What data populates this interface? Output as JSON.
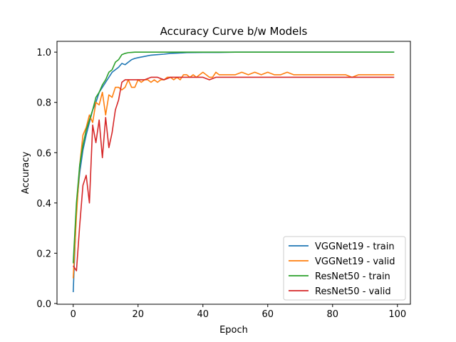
{
  "chart_data": {
    "type": "line",
    "title": "Accuracy Curve b/w Models",
    "xlabel": "Epoch",
    "ylabel": "Accuracy",
    "xlim": [
      -5,
      104
    ],
    "ylim": [
      -0.003,
      1.043
    ],
    "xticks": [
      0,
      20,
      40,
      60,
      80,
      100
    ],
    "yticks": [
      0.0,
      0.2,
      0.4,
      0.6,
      0.8,
      1.0
    ],
    "xtick_labels": [
      "0",
      "20",
      "40",
      "60",
      "80",
      "100"
    ],
    "ytick_labels": [
      "0.0",
      "0.2",
      "0.4",
      "0.6",
      "0.8",
      "1.0"
    ],
    "grid": false,
    "legend_position": "lower-right",
    "series": [
      {
        "name": "VGGNet19 - train",
        "color": "#1f77b4",
        "x": [
          0,
          1,
          2,
          3,
          4,
          5,
          6,
          7,
          8,
          9,
          10,
          11,
          12,
          13,
          14,
          15,
          16,
          17,
          18,
          19,
          20,
          22,
          24,
          26,
          28,
          30,
          32,
          35,
          40,
          45,
          50,
          60,
          70,
          80,
          90,
          99
        ],
        "values": [
          0.045,
          0.38,
          0.52,
          0.61,
          0.67,
          0.72,
          0.77,
          0.8,
          0.84,
          0.86,
          0.88,
          0.9,
          0.92,
          0.93,
          0.94,
          0.955,
          0.95,
          0.96,
          0.97,
          0.975,
          0.978,
          0.983,
          0.988,
          0.99,
          0.992,
          0.995,
          0.996,
          0.998,
          0.999,
          0.999,
          1.0,
          1.0,
          1.0,
          1.0,
          1.0,
          1.0
        ]
      },
      {
        "name": "VGGNet19 - valid",
        "color": "#ff7f0e",
        "x": [
          0,
          1,
          2,
          3,
          4,
          5,
          6,
          7,
          8,
          9,
          10,
          11,
          12,
          13,
          14,
          15,
          16,
          17,
          18,
          19,
          20,
          21,
          22,
          23,
          24,
          25,
          26,
          27,
          28,
          29,
          30,
          31,
          32,
          33,
          34,
          35,
          36,
          37,
          38,
          39,
          40,
          41,
          42,
          43,
          44,
          45,
          46,
          47,
          48,
          49,
          50,
          52,
          54,
          56,
          58,
          60,
          62,
          64,
          66,
          68,
          70,
          72,
          74,
          76,
          78,
          80,
          82,
          84,
          86,
          88,
          90,
          92,
          94,
          96,
          98,
          99
        ],
        "values": [
          0.1,
          0.35,
          0.55,
          0.67,
          0.7,
          0.75,
          0.72,
          0.8,
          0.79,
          0.84,
          0.75,
          0.83,
          0.82,
          0.86,
          0.86,
          0.85,
          0.86,
          0.89,
          0.86,
          0.86,
          0.89,
          0.88,
          0.89,
          0.89,
          0.88,
          0.89,
          0.88,
          0.89,
          0.89,
          0.9,
          0.9,
          0.89,
          0.9,
          0.89,
          0.91,
          0.91,
          0.9,
          0.91,
          0.9,
          0.91,
          0.92,
          0.91,
          0.9,
          0.9,
          0.92,
          0.91,
          0.91,
          0.91,
          0.91,
          0.91,
          0.91,
          0.92,
          0.91,
          0.92,
          0.91,
          0.92,
          0.91,
          0.91,
          0.92,
          0.91,
          0.91,
          0.91,
          0.91,
          0.91,
          0.91,
          0.91,
          0.91,
          0.91,
          0.9,
          0.91,
          0.91,
          0.91,
          0.91,
          0.91,
          0.91,
          0.91
        ]
      },
      {
        "name": "ResNet50 - train",
        "color": "#2ca02c",
        "x": [
          0,
          1,
          2,
          3,
          4,
          5,
          6,
          7,
          8,
          9,
          10,
          11,
          12,
          13,
          14,
          15,
          16,
          17,
          18,
          19,
          20,
          25,
          30,
          40,
          50,
          60,
          70,
          80,
          90,
          99
        ],
        "values": [
          0.16,
          0.4,
          0.55,
          0.63,
          0.69,
          0.73,
          0.77,
          0.82,
          0.84,
          0.87,
          0.89,
          0.92,
          0.93,
          0.96,
          0.97,
          0.99,
          0.995,
          0.998,
          0.999,
          1.0,
          1.0,
          1.0,
          1.0,
          1.0,
          1.0,
          1.0,
          1.0,
          1.0,
          1.0,
          1.0
        ]
      },
      {
        "name": "ResNet50 - valid",
        "color": "#d62728",
        "x": [
          0,
          1,
          2,
          3,
          4,
          5,
          6,
          7,
          8,
          9,
          10,
          11,
          12,
          13,
          14,
          15,
          16,
          17,
          18,
          19,
          20,
          22,
          24,
          26,
          28,
          30,
          32,
          34,
          36,
          38,
          40,
          42,
          44,
          46,
          48,
          50,
          52,
          54,
          56,
          58,
          60,
          62,
          64,
          66,
          68,
          70,
          72,
          74,
          76,
          78,
          80,
          82,
          84,
          86,
          88,
          90,
          92,
          94,
          96,
          98,
          99
        ],
        "values": [
          0.15,
          0.13,
          0.31,
          0.47,
          0.51,
          0.4,
          0.71,
          0.64,
          0.73,
          0.58,
          0.74,
          0.62,
          0.68,
          0.77,
          0.81,
          0.88,
          0.89,
          0.89,
          0.89,
          0.89,
          0.89,
          0.89,
          0.9,
          0.9,
          0.89,
          0.9,
          0.9,
          0.9,
          0.9,
          0.9,
          0.9,
          0.89,
          0.9,
          0.9,
          0.9,
          0.9,
          0.9,
          0.9,
          0.9,
          0.9,
          0.9,
          0.9,
          0.9,
          0.9,
          0.9,
          0.9,
          0.9,
          0.9,
          0.9,
          0.9,
          0.9,
          0.9,
          0.9,
          0.9,
          0.9,
          0.9,
          0.9,
          0.9,
          0.9,
          0.9,
          0.9
        ]
      }
    ]
  }
}
